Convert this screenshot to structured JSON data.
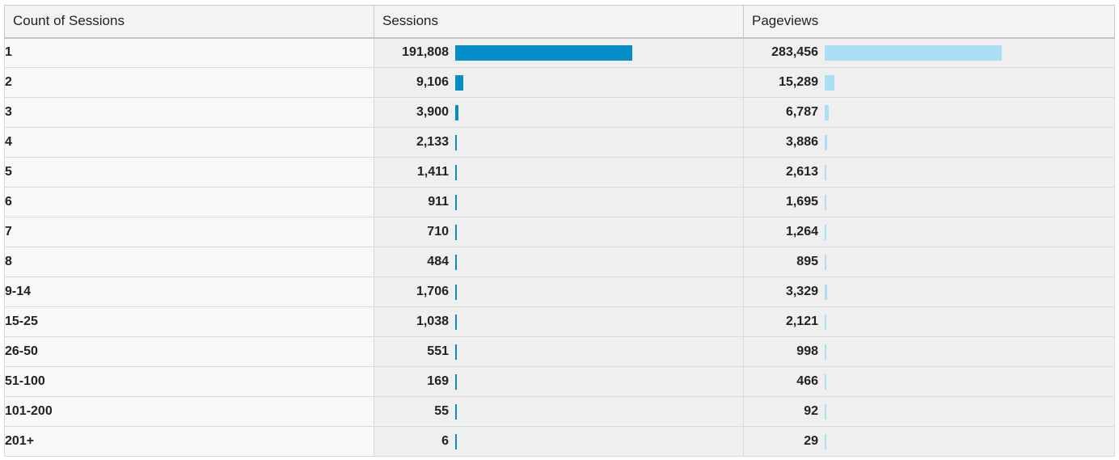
{
  "columns": {
    "dimension": "Count of Sessions",
    "sessions": "Sessions",
    "pageviews": "Pageviews"
  },
  "colors": {
    "sessions_bar": "#058dc7",
    "pageviews_bar": "#aadff3"
  },
  "rows": [
    {
      "count": "1",
      "sessions": "191,808",
      "sessions_num": 191808,
      "pageviews": "283,456",
      "pageviews_num": 283456
    },
    {
      "count": "2",
      "sessions": "9,106",
      "sessions_num": 9106,
      "pageviews": "15,289",
      "pageviews_num": 15289
    },
    {
      "count": "3",
      "sessions": "3,900",
      "sessions_num": 3900,
      "pageviews": "6,787",
      "pageviews_num": 6787
    },
    {
      "count": "4",
      "sessions": "2,133",
      "sessions_num": 2133,
      "pageviews": "3,886",
      "pageviews_num": 3886
    },
    {
      "count": "5",
      "sessions": "1,411",
      "sessions_num": 1411,
      "pageviews": "2,613",
      "pageviews_num": 2613
    },
    {
      "count": "6",
      "sessions": "911",
      "sessions_num": 911,
      "pageviews": "1,695",
      "pageviews_num": 1695
    },
    {
      "count": "7",
      "sessions": "710",
      "sessions_num": 710,
      "pageviews": "1,264",
      "pageviews_num": 1264
    },
    {
      "count": "8",
      "sessions": "484",
      "sessions_num": 484,
      "pageviews": "895",
      "pageviews_num": 895
    },
    {
      "count": "9-14",
      "sessions": "1,706",
      "sessions_num": 1706,
      "pageviews": "3,329",
      "pageviews_num": 3329
    },
    {
      "count": "15-25",
      "sessions": "1,038",
      "sessions_num": 1038,
      "pageviews": "2,121",
      "pageviews_num": 2121
    },
    {
      "count": "26-50",
      "sessions": "551",
      "sessions_num": 551,
      "pageviews": "998",
      "pageviews_num": 998
    },
    {
      "count": "51-100",
      "sessions": "169",
      "sessions_num": 169,
      "pageviews": "466",
      "pageviews_num": 466
    },
    {
      "count": "101-200",
      "sessions": "55",
      "sessions_num": 55,
      "pageviews": "92",
      "pageviews_num": 92
    },
    {
      "count": "201+",
      "sessions": "6",
      "sessions_num": 6,
      "pageviews": "29",
      "pageviews_num": 29
    }
  ]
}
